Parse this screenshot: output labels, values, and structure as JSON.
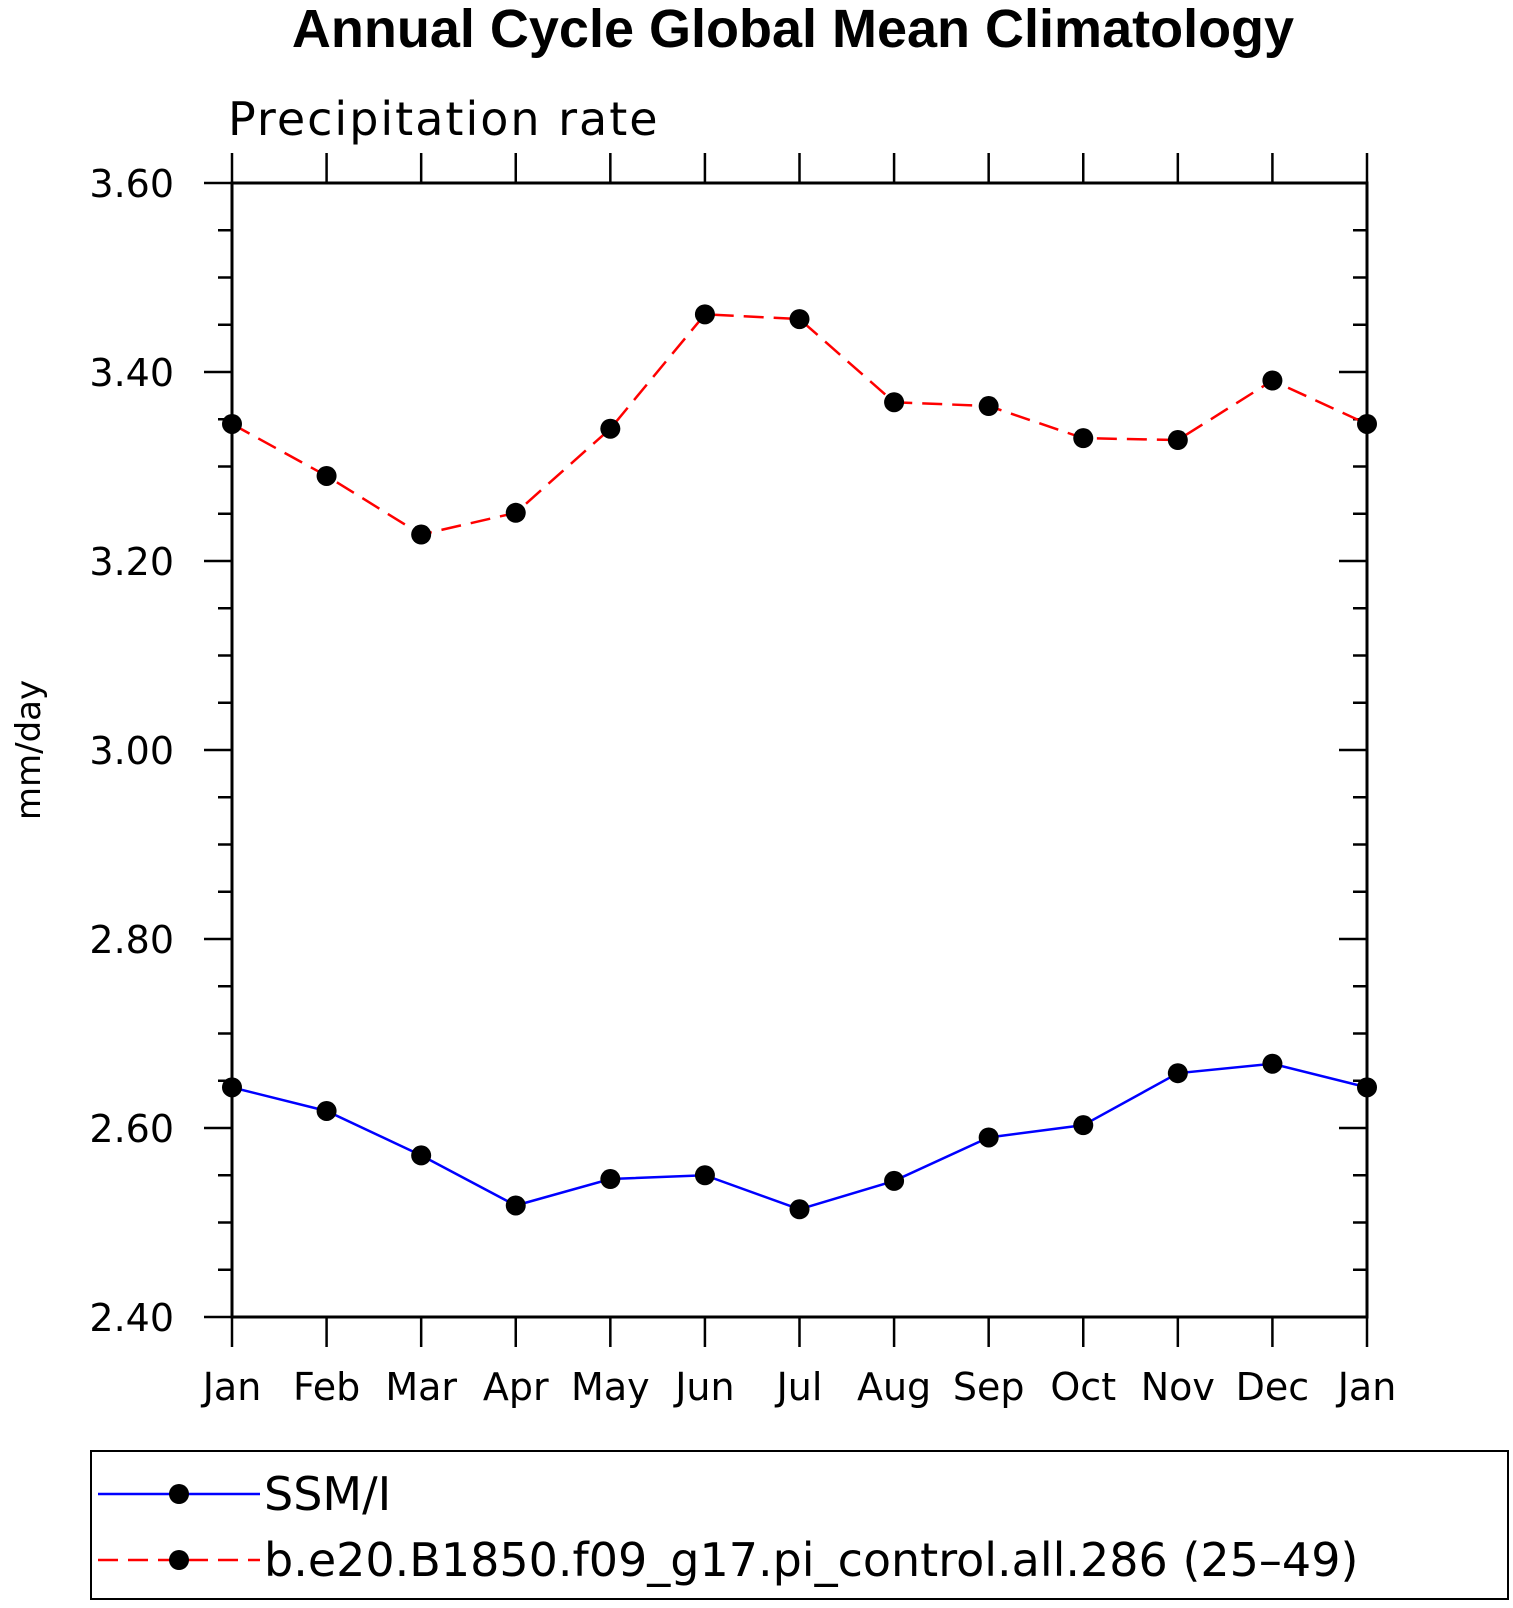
{
  "chart_data": {
    "type": "line",
    "title": "Annual Cycle Global Mean Climatology",
    "subtitle": "Precipitation rate",
    "xlabel": "",
    "ylabel": "mm/day",
    "ylim": [
      2.4,
      3.6
    ],
    "y_ticks": [
      "2.40",
      "2.60",
      "2.80",
      "3.00",
      "3.20",
      "3.40",
      "3.60"
    ],
    "y_tick_values": [
      2.4,
      2.6,
      2.8,
      3.0,
      3.2,
      3.4,
      3.6
    ],
    "categories": [
      "Jan",
      "Feb",
      "Mar",
      "Apr",
      "May",
      "Jun",
      "Jul",
      "Aug",
      "Sep",
      "Oct",
      "Nov",
      "Dec",
      "Jan"
    ],
    "grid": false,
    "legend_position": "bottom",
    "series": [
      {
        "name": "SSM/I",
        "color": "#0000ff",
        "dash": "solid",
        "marker": "filled-circle",
        "values": [
          2.643,
          2.618,
          2.571,
          2.518,
          2.546,
          2.55,
          2.514,
          2.544,
          2.59,
          2.603,
          2.658,
          2.668,
          2.643
        ]
      },
      {
        "name": "b.e20.B1850.f09_g17.pi_control.all.286 (25–49)",
        "color": "#ff0000",
        "dash": "dashed",
        "marker": "filled-circle",
        "values": [
          3.345,
          3.29,
          3.228,
          3.251,
          3.34,
          3.461,
          3.456,
          3.368,
          3.364,
          3.33,
          3.328,
          3.391,
          3.345
        ]
      }
    ]
  }
}
